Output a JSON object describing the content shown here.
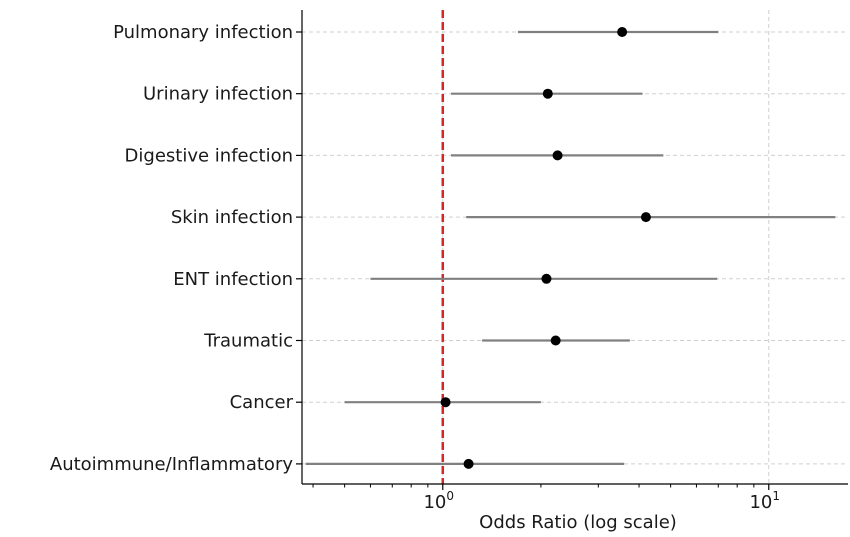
{
  "chart_data": {
    "type": "forest",
    "xlabel": "Odds Ratio (log scale)",
    "x_scale": "log",
    "xlim": [
      0.37,
      17.5
    ],
    "x_ticks": [
      {
        "value": 1,
        "base": "10",
        "exponent": "0"
      },
      {
        "value": 10,
        "base": "10",
        "exponent": "1"
      }
    ],
    "grid": true,
    "reference_line": {
      "value": 1,
      "color": "#d62728",
      "style": "dashed"
    },
    "colors": {
      "point": "#000000",
      "ci": "#808080",
      "grid": "#d0d0d0",
      "axis": "#000000"
    },
    "categories": [
      "Pulmonary infection",
      "Urinary infection",
      "Digestive infection",
      "Skin infection",
      "ENT infection",
      "Traumatic",
      "Cancer",
      "Autoimmune/Inflammatory"
    ],
    "odds_ratio": [
      3.55,
      2.1,
      2.25,
      4.2,
      2.08,
      2.22,
      1.02,
      1.2
    ],
    "ci_lower": [
      1.7,
      1.06,
      1.06,
      1.18,
      0.6,
      1.32,
      0.5,
      0.38
    ],
    "ci_upper": [
      7.0,
      4.1,
      4.75,
      16.0,
      6.95,
      3.75,
      2.0,
      3.6
    ]
  }
}
